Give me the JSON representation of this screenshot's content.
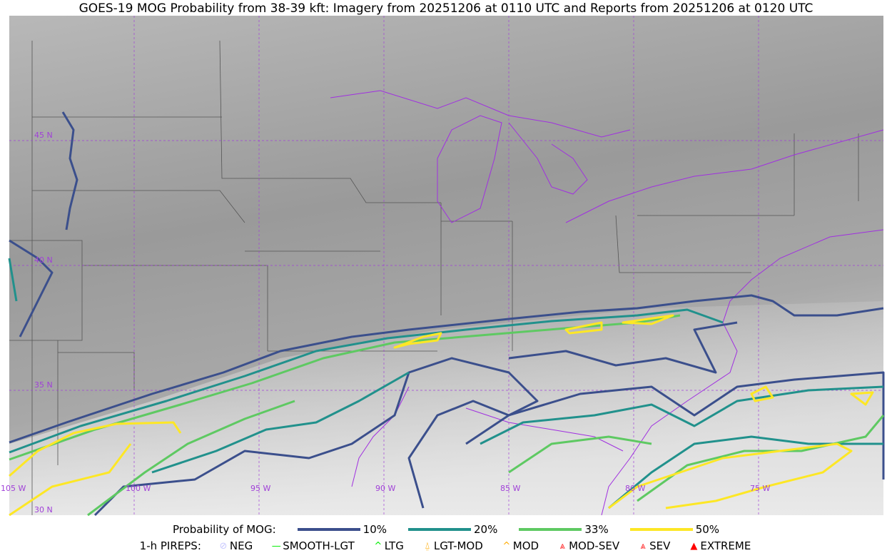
{
  "title": "GOES-19 MOG Probability from 38-39 kft: Imagery from 20251206 at 0110 UTC and Reports from 20251206 at 0120 UTC",
  "map": {
    "graticule_color": "#a040d8",
    "lat_labels": [
      "45 N",
      "40 N",
      "35 N",
      "30 N"
    ],
    "lon_labels": [
      "105 W",
      "100 W",
      "95 W",
      "90 W",
      "85 W",
      "80 W",
      "75 W"
    ]
  },
  "legend": {
    "probability_label": "Probability of MOG:",
    "probability_levels": [
      {
        "label": "10%",
        "color": "#3b4f8c"
      },
      {
        "label": "20%",
        "color": "#21918c"
      },
      {
        "label": "33%",
        "color": "#5ec962"
      },
      {
        "label": "50%",
        "color": "#fde725"
      }
    ],
    "pireps_label": "1-h PIREPS:",
    "pireps": [
      {
        "label": "NEG",
        "icon": "neg-circle-icon",
        "color": "#c8c8ff"
      },
      {
        "label": "SMOOTH-LGT",
        "icon": "line-icon",
        "color": "#00ee00"
      },
      {
        "label": "LTG",
        "icon": "caret-icon",
        "color": "#00ee00"
      },
      {
        "label": "LGT-MOD",
        "icon": "caret-bar-icon",
        "color": "#ffaa00"
      },
      {
        "label": "MOD",
        "icon": "caret-icon",
        "color": "#ffaa00"
      },
      {
        "label": "MOD-SEV",
        "icon": "double-caret-bar-icon",
        "color": "#ff2020"
      },
      {
        "label": "SEV",
        "icon": "double-caret-icon",
        "color": "#ff2020"
      },
      {
        "label": "EXTREME",
        "icon": "filled-triangle-icon",
        "color": "#ff0000"
      }
    ]
  }
}
